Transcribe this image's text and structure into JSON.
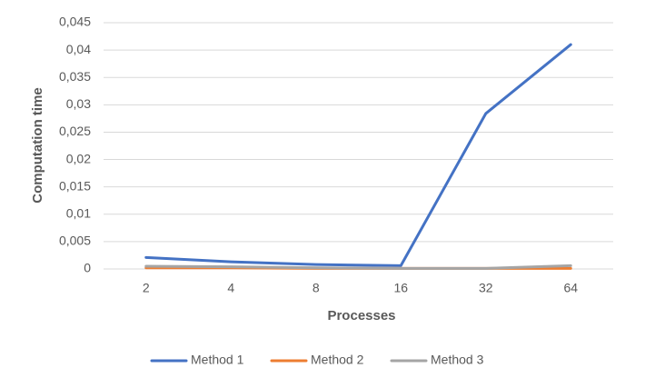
{
  "chart_data": {
    "type": "line",
    "x_label": "Processes",
    "y_label": "Computation time",
    "categories": [
      "2",
      "4",
      "8",
      "16",
      "32",
      "64"
    ],
    "series": [
      {
        "name": "Method 1",
        "color": "#4472c4",
        "values": [
          0.0021,
          0.0013,
          0.0008,
          0.0006,
          0.0284,
          0.041
        ]
      },
      {
        "name": "Method 2",
        "color": "#ed7d31",
        "values": [
          0.0002,
          0.0002,
          0.0001,
          0.0001,
          0.0001,
          0.0001
        ]
      },
      {
        "name": "Method 3",
        "color": "#a5a5a5",
        "values": [
          0.0005,
          0.0004,
          0.0002,
          0.0001,
          0.0001,
          0.0006
        ]
      }
    ],
    "ylim": [
      0,
      0.045
    ],
    "yticks": [
      0,
      {
        "value": 0.005,
        "label": "0,005"
      },
      {
        "value": 0.01,
        "label": "0,01"
      },
      {
        "value": 0.015,
        "label": "0,015"
      },
      {
        "value": 0.02,
        "label": "0,02"
      },
      {
        "value": 0.025,
        "label": "0,025"
      },
      {
        "value": 0.03,
        "label": "0,03"
      },
      {
        "value": 0.035,
        "label": "0,035"
      },
      {
        "value": 0.04,
        "label": "0,04"
      },
      {
        "value": 0.045,
        "label": "0,045"
      }
    ],
    "grid": true,
    "legend": "bottom"
  }
}
